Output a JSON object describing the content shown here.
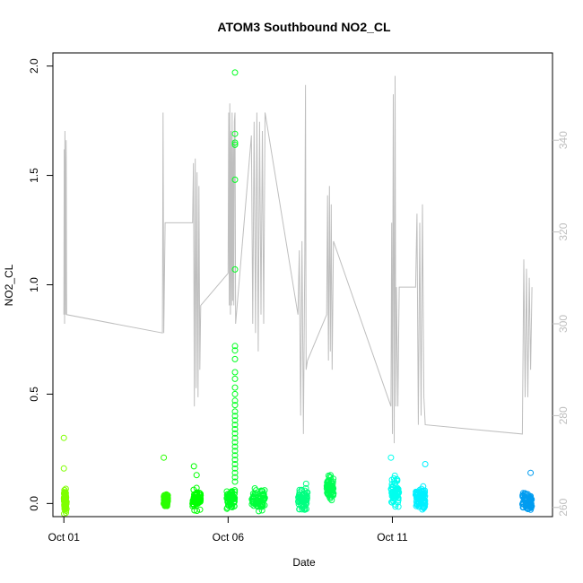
{
  "chart_data": {
    "type": "scatter",
    "title": "ATOM3 Southbound NO2_CL",
    "xlabel": "Date",
    "ylabel": "NO2_CL",
    "x_type": "date",
    "xlim": [
      "2023-09-30T16:00",
      "2023-10-15T21:00"
    ],
    "ylim": [
      -0.06,
      2.06
    ],
    "y2lim": [
      258,
      359
    ],
    "x_ticks": [
      {
        "date": "2023-10-01T00:00",
        "label": "Oct 01"
      },
      {
        "date": "2023-10-06T00:00",
        "label": "Oct 06"
      },
      {
        "date": "2023-10-11T00:00",
        "label": "Oct 11"
      }
    ],
    "y_ticks": [
      "0.0",
      "0.5",
      "1.0",
      "1.5",
      "2.0"
    ],
    "y2_ticks": [
      "260",
      "280",
      "300",
      "320",
      "340"
    ],
    "grid": false,
    "legend": "none",
    "colors": {
      "line": "#bebebe",
      "axis": "#000000",
      "axis_right": "#bebebe"
    },
    "series": [
      {
        "type": "scatter",
        "axis": "left",
        "clusters": [
          {
            "start": "2023-10-01T00:00",
            "end": "2023-10-01T02:00",
            "center": 0.01,
            "spread": 0.06,
            "color": "#7fff00"
          },
          {
            "start": "2023-10-04T01:00",
            "end": "2023-10-04T04:00",
            "center": 0.015,
            "spread": 0.03,
            "color": "#2aff00"
          },
          {
            "start": "2023-10-04T22:00",
            "end": "2023-10-05T04:00",
            "center": 0.02,
            "spread": 0.05,
            "color": "#00ff00"
          },
          {
            "start": "2023-10-05T23:00",
            "end": "2023-10-06T05:00",
            "center": 0.02,
            "spread": 0.05,
            "color": "#00ff20"
          },
          {
            "start": "2023-10-06T17:00",
            "end": "2023-10-07T03:00",
            "center": 0.02,
            "spread": 0.05,
            "color": "#00ff3a"
          },
          {
            "start": "2023-10-08T03:00",
            "end": "2023-10-08T10:00",
            "center": 0.02,
            "spread": 0.05,
            "color": "#00ff80"
          },
          {
            "start": "2023-10-09T00:00",
            "end": "2023-10-09T05:00",
            "center": 0.07,
            "spread": 0.06,
            "color": "#00ff55"
          },
          {
            "start": "2023-10-10T23:00",
            "end": "2023-10-11T05:00",
            "center": 0.05,
            "spread": 0.07,
            "color": "#00ffee"
          },
          {
            "start": "2023-10-11T17:00",
            "end": "2023-10-12T00:00",
            "center": 0.02,
            "spread": 0.06,
            "color": "#00f0ff"
          },
          {
            "start": "2023-10-14T23:00",
            "end": "2023-10-15T06:00",
            "center": 0.0,
            "spread": 0.05,
            "color": "#009cf0"
          }
        ],
        "outliers": [
          {
            "x": "2023-10-01T00:00",
            "y": 0.3,
            "color": "#7fff00"
          },
          {
            "x": "2023-10-01T00:00",
            "y": 0.16,
            "color": "#7fff00"
          },
          {
            "x": "2023-10-04T01:00",
            "y": 0.21,
            "color": "#2aff00"
          },
          {
            "x": "2023-10-04T23:00",
            "y": 0.17,
            "color": "#00ff00"
          },
          {
            "x": "2023-10-05T01:00",
            "y": 0.13,
            "color": "#00ff00"
          },
          {
            "x": "2023-10-06T05:00",
            "y": 1.97,
            "color": "#00ff20"
          },
          {
            "x": "2023-10-06T05:00",
            "y": 1.69,
            "color": "#00ff20"
          },
          {
            "x": "2023-10-06T05:00",
            "y": 1.65,
            "color": "#00ff20"
          },
          {
            "x": "2023-10-06T05:00",
            "y": 1.64,
            "color": "#00ff20"
          },
          {
            "x": "2023-10-06T05:00",
            "y": 1.48,
            "color": "#00ff20"
          },
          {
            "x": "2023-10-06T05:00",
            "y": 1.07,
            "color": "#00ff20"
          },
          {
            "x": "2023-10-06T05:00",
            "y": 0.72,
            "color": "#00ff20"
          },
          {
            "x": "2023-10-06T05:00",
            "y": 0.7,
            "color": "#00ff20"
          },
          {
            "x": "2023-10-06T05:00",
            "y": 0.66,
            "color": "#00ff20"
          },
          {
            "x": "2023-10-06T05:00",
            "y": 0.6,
            "color": "#00ff20"
          },
          {
            "x": "2023-10-06T05:00",
            "y": 0.57,
            "color": "#00ff20"
          },
          {
            "x": "2023-10-06T05:00",
            "y": 0.53,
            "color": "#00ff20"
          },
          {
            "x": "2023-10-06T05:00",
            "y": 0.5,
            "color": "#00ff20"
          },
          {
            "x": "2023-10-06T05:00",
            "y": 0.47,
            "color": "#00ff20"
          },
          {
            "x": "2023-10-06T05:00",
            "y": 0.45,
            "color": "#00ff20"
          },
          {
            "x": "2023-10-06T05:00",
            "y": 0.42,
            "color": "#00ff20"
          },
          {
            "x": "2023-10-06T05:00",
            "y": 0.4,
            "color": "#00ff20"
          },
          {
            "x": "2023-10-06T05:00",
            "y": 0.38,
            "color": "#00ff20"
          },
          {
            "x": "2023-10-06T05:00",
            "y": 0.36,
            "color": "#00ff20"
          },
          {
            "x": "2023-10-06T05:00",
            "y": 0.34,
            "color": "#00ff20"
          },
          {
            "x": "2023-10-06T05:00",
            "y": 0.32,
            "color": "#00ff20"
          },
          {
            "x": "2023-10-06T05:00",
            "y": 0.3,
            "color": "#00ff20"
          },
          {
            "x": "2023-10-06T05:00",
            "y": 0.28,
            "color": "#00ff20"
          },
          {
            "x": "2023-10-06T05:00",
            "y": 0.26,
            "color": "#00ff20"
          },
          {
            "x": "2023-10-06T05:00",
            "y": 0.24,
            "color": "#00ff20"
          },
          {
            "x": "2023-10-06T05:00",
            "y": 0.22,
            "color": "#00ff20"
          },
          {
            "x": "2023-10-06T05:00",
            "y": 0.2,
            "color": "#00ff20"
          },
          {
            "x": "2023-10-06T05:00",
            "y": 0.18,
            "color": "#00ff20"
          },
          {
            "x": "2023-10-06T05:00",
            "y": 0.16,
            "color": "#00ff20"
          },
          {
            "x": "2023-10-06T05:00",
            "y": 0.14,
            "color": "#00ff20"
          },
          {
            "x": "2023-10-06T05:00",
            "y": 0.12,
            "color": "#00ff20"
          },
          {
            "x": "2023-10-06T05:00",
            "y": 0.1,
            "color": "#00ff20"
          },
          {
            "x": "2023-10-08T09:00",
            "y": 0.09,
            "color": "#00ff80"
          },
          {
            "x": "2023-10-10T23:00",
            "y": 0.21,
            "color": "#00ffee"
          },
          {
            "x": "2023-10-12T00:00",
            "y": 0.18,
            "color": "#00f0ff"
          },
          {
            "x": "2023-10-15T05:00",
            "y": 0.14,
            "color": "#009cf0"
          }
        ]
      },
      {
        "type": "line",
        "axis": "right",
        "color": "#bebebe",
        "points": [
          [
            "2023-10-01T00:00",
            302
          ],
          [
            "2023-10-01T00:15",
            338
          ],
          [
            "2023-10-01T00:30",
            300
          ],
          [
            "2023-10-01T00:45",
            342
          ],
          [
            "2023-10-01T01:00",
            336
          ],
          [
            "2023-10-01T01:20",
            302
          ],
          [
            "2023-10-01T01:40",
            340
          ],
          [
            "2023-10-01T02:00",
            302
          ],
          [
            "2023-10-04T00:00",
            298
          ],
          [
            "2023-10-04T00:30",
            346
          ],
          [
            "2023-10-04T01:00",
            298
          ],
          [
            "2023-10-04T02:00",
            322
          ],
          [
            "2023-10-04T22:00",
            322
          ],
          [
            "2023-10-04T22:40",
            335
          ],
          [
            "2023-10-04T23:20",
            282
          ],
          [
            "2023-10-05T00:00",
            336
          ],
          [
            "2023-10-05T00:40",
            286
          ],
          [
            "2023-10-05T01:20",
            333
          ],
          [
            "2023-10-05T02:00",
            284
          ],
          [
            "2023-10-05T02:40",
            330
          ],
          [
            "2023-10-05T03:20",
            290
          ],
          [
            "2023-10-05T04:00",
            304
          ],
          [
            "2023-10-06T00:00",
            311
          ],
          [
            "2023-10-06T00:25",
            346
          ],
          [
            "2023-10-06T00:50",
            304
          ],
          [
            "2023-10-06T01:15",
            348
          ],
          [
            "2023-10-06T01:40",
            302
          ],
          [
            "2023-10-06T02:05",
            342
          ],
          [
            "2023-10-06T02:30",
            304
          ],
          [
            "2023-10-06T02:55",
            346
          ],
          [
            "2023-10-06T03:20",
            305
          ],
          [
            "2023-10-06T03:45",
            340
          ],
          [
            "2023-10-06T04:10",
            304
          ],
          [
            "2023-10-06T04:35",
            344
          ],
          [
            "2023-10-06T05:00",
            346
          ],
          [
            "2023-10-06T05:30",
            300
          ],
          [
            "2023-10-06T17:00",
            341
          ],
          [
            "2023-10-06T18:00",
            300
          ],
          [
            "2023-10-06T19:00",
            344
          ],
          [
            "2023-10-06T20:00",
            298
          ],
          [
            "2023-10-06T21:00",
            346
          ],
          [
            "2023-10-06T22:00",
            294
          ],
          [
            "2023-10-06T23:00",
            344
          ],
          [
            "2023-10-07T00:00",
            302
          ],
          [
            "2023-10-07T01:00",
            342
          ],
          [
            "2023-10-07T02:00",
            300
          ],
          [
            "2023-10-07T03:00",
            346
          ],
          [
            "2023-10-08T03:00",
            302
          ],
          [
            "2023-10-08T04:00",
            316
          ],
          [
            "2023-10-08T05:00",
            280
          ],
          [
            "2023-10-08T06:00",
            318
          ],
          [
            "2023-10-08T07:00",
            276
          ],
          [
            "2023-10-08T08:00",
            314
          ],
          [
            "2023-10-08T08:30",
            352
          ],
          [
            "2023-10-08T09:00",
            290
          ],
          [
            "2023-10-08T10:00",
            292
          ],
          [
            "2023-10-09T00:00",
            302
          ],
          [
            "2023-10-09T00:40",
            328
          ],
          [
            "2023-10-09T01:20",
            292
          ],
          [
            "2023-10-09T02:00",
            330
          ],
          [
            "2023-10-09T02:40",
            294
          ],
          [
            "2023-10-09T03:20",
            326
          ],
          [
            "2023-10-09T04:00",
            290
          ],
          [
            "2023-10-09T05:00",
            318
          ],
          [
            "2023-10-10T23:00",
            282
          ],
          [
            "2023-10-10T23:30",
            322
          ],
          [
            "2023-10-11T00:00",
            276
          ],
          [
            "2023-10-11T00:40",
            350
          ],
          [
            "2023-10-11T01:20",
            274
          ],
          [
            "2023-10-11T02:00",
            354
          ],
          [
            "2023-10-11T02:30",
            282
          ],
          [
            "2023-10-11T03:00",
            308
          ],
          [
            "2023-10-11T04:00",
            282
          ],
          [
            "2023-10-11T05:00",
            308
          ],
          [
            "2023-10-11T17:00",
            308
          ],
          [
            "2023-10-11T18:00",
            324
          ],
          [
            "2023-10-11T19:00",
            278
          ],
          [
            "2023-10-11T20:00",
            322
          ],
          [
            "2023-10-11T21:00",
            280
          ],
          [
            "2023-10-11T22:00",
            326
          ],
          [
            "2023-10-11T23:00",
            284
          ],
          [
            "2023-10-12T00:00",
            278
          ],
          [
            "2023-10-14T23:00",
            276
          ],
          [
            "2023-10-15T00:00",
            314
          ],
          [
            "2023-10-15T01:00",
            284
          ],
          [
            "2023-10-15T02:00",
            312
          ],
          [
            "2023-10-15T03:00",
            284
          ],
          [
            "2023-10-15T04:00",
            310
          ],
          [
            "2023-10-15T05:00",
            290
          ],
          [
            "2023-10-15T06:00",
            308
          ]
        ]
      }
    ]
  }
}
